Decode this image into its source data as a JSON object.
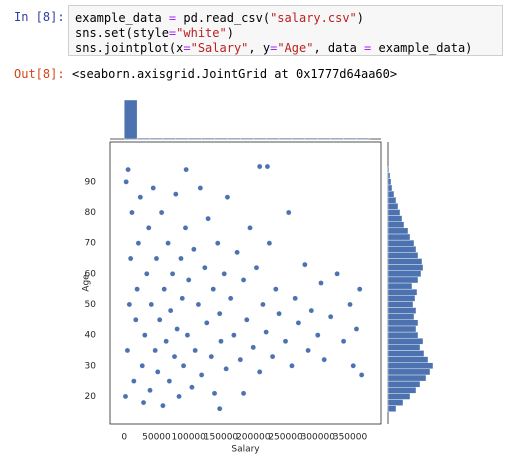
{
  "cell": {
    "prompt_in": "In [8]:",
    "code_lines": [
      [
        {
          "text": "example_data ",
          "color": "#000000"
        },
        {
          "text": "=",
          "color": "#aa22ff"
        },
        {
          "text": " pd.read_csv(",
          "color": "#000000"
        },
        {
          "text": "\"salary.csv\"",
          "color": "#ba2121"
        },
        {
          "text": ")",
          "color": "#000000"
        }
      ],
      [
        {
          "text": "sns.set(style",
          "color": "#000000"
        },
        {
          "text": "=",
          "color": "#aa22ff"
        },
        {
          "text": "\"white\"",
          "color": "#ba2121"
        },
        {
          "text": ")",
          "color": "#000000"
        }
      ],
      [
        {
          "text": "sns.jointplot(x",
          "color": "#000000"
        },
        {
          "text": "=",
          "color": "#aa22ff"
        },
        {
          "text": "\"Salary\"",
          "color": "#ba2121"
        },
        {
          "text": ", y",
          "color": "#000000"
        },
        {
          "text": "=",
          "color": "#aa22ff"
        },
        {
          "text": "\"Age\"",
          "color": "#ba2121"
        },
        {
          "text": ", data ",
          "color": "#000000"
        },
        {
          "text": "=",
          "color": "#aa22ff"
        },
        {
          "text": " example_data)",
          "color": "#000000"
        }
      ]
    ],
    "prompt_out": "Out[8]:",
    "output": "<seaborn.axisgrid.JointGrid at 0x1777d64aa60>"
  },
  "chart_data": [
    {
      "type": "scatter",
      "xlabel": "Salary",
      "ylabel": "Age",
      "color": "#4c72b0",
      "xlim": [
        -22000,
        398000
      ],
      "ylim": [
        11,
        103
      ],
      "xticks": [
        0,
        50000,
        100000,
        150000,
        200000,
        250000,
        300000,
        350000
      ],
      "yticks": [
        20,
        30,
        40,
        50,
        60,
        70,
        80,
        90
      ],
      "x": [
        2000,
        5000,
        8000,
        10000,
        12000,
        3000,
        6000,
        15000,
        18000,
        20000,
        22000,
        25000,
        28000,
        30000,
        32000,
        35000,
        38000,
        40000,
        42000,
        45000,
        48000,
        50000,
        52000,
        55000,
        58000,
        60000,
        62000,
        65000,
        68000,
        70000,
        72000,
        75000,
        78000,
        80000,
        82000,
        85000,
        88000,
        90000,
        92000,
        95000,
        98000,
        100000,
        105000,
        108000,
        110000,
        115000,
        118000,
        120000,
        125000,
        128000,
        130000,
        135000,
        138000,
        140000,
        145000,
        148000,
        150000,
        155000,
        158000,
        160000,
        165000,
        170000,
        175000,
        180000,
        185000,
        190000,
        195000,
        200000,
        205000,
        210000,
        215000,
        220000,
        225000,
        230000,
        235000,
        240000,
        250000,
        255000,
        260000,
        265000,
        270000,
        280000,
        285000,
        290000,
        300000,
        305000,
        310000,
        320000,
        330000,
        340000,
        350000,
        355000,
        360000,
        365000,
        368000,
        96000,
        210000,
        222000,
        148000,
        185000
      ],
      "values": [
        20,
        35,
        50,
        65,
        80,
        90,
        94,
        25,
        45,
        55,
        70,
        85,
        30,
        18,
        40,
        60,
        75,
        22,
        50,
        88,
        35,
        65,
        28,
        45,
        80,
        17,
        55,
        38,
        70,
        25,
        48,
        60,
        33,
        86,
        42,
        20,
        65,
        52,
        30,
        75,
        40,
        58,
        23,
        68,
        35,
        50,
        88,
        27,
        62,
        44,
        78,
        33,
        55,
        21,
        70,
        47,
        38,
        60,
        29,
        85,
        52,
        40,
        67,
        32,
        58,
        45,
        75,
        36,
        62,
        28,
        50,
        41,
        70,
        33,
        55,
        47,
        38,
        80,
        30,
        52,
        44,
        63,
        35,
        48,
        40,
        57,
        32,
        46,
        60,
        38,
        50,
        30,
        42,
        55,
        27,
        94,
        95,
        95,
        16,
        21
      ]
    },
    {
      "type": "histogram",
      "orientation": "vertical",
      "color": "#4c72b0",
      "bins": [
        0,
        20000,
        40000,
        60000,
        80000,
        100000,
        120000,
        140000,
        160000,
        180000,
        200000,
        220000,
        240000,
        260000,
        280000,
        300000,
        320000,
        340000,
        360000,
        380000
      ],
      "counts": [
        40,
        1,
        1,
        1,
        1,
        1,
        1,
        1,
        1,
        1,
        1,
        1,
        1,
        1,
        1,
        1,
        1,
        1,
        1
      ]
    },
    {
      "type": "histogram",
      "orientation": "horizontal",
      "color": "#4c72b0",
      "bins": [
        15,
        17,
        19,
        21,
        23,
        25,
        27,
        29,
        31,
        33,
        35,
        37,
        39,
        41,
        43,
        45,
        47,
        49,
        51,
        53,
        55,
        57,
        59,
        61,
        63,
        65,
        67,
        69,
        71,
        73,
        75,
        77,
        79,
        81,
        83,
        85,
        87,
        89,
        91,
        93,
        95
      ],
      "counts": [
        8,
        15,
        22,
        28,
        32,
        38,
        42,
        45,
        40,
        36,
        32,
        35,
        30,
        28,
        30,
        26,
        28,
        25,
        27,
        29,
        24,
        30,
        33,
        35,
        34,
        30,
        28,
        26,
        22,
        20,
        16,
        14,
        12,
        10,
        8,
        6,
        4,
        3,
        2,
        1
      ]
    }
  ]
}
